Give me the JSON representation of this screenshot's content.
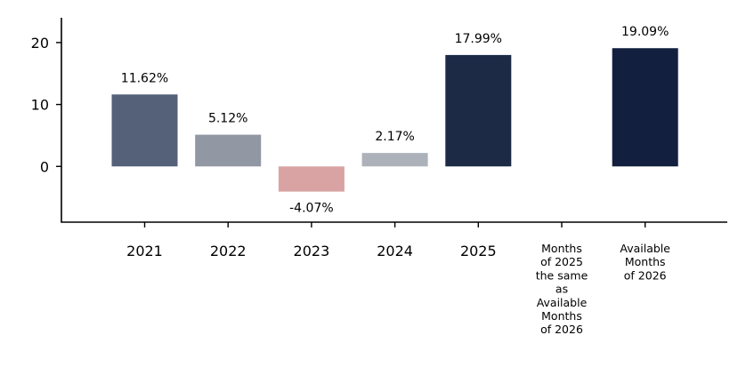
{
  "chart_data": {
    "type": "bar",
    "title": "",
    "xlabel": "",
    "ylabel": "",
    "ylim": [
      -9,
      24
    ],
    "yticks": [
      0,
      10,
      20
    ],
    "grid": false,
    "categories": [
      "2021",
      "2022",
      "2023",
      "2024",
      "2025",
      "Months\nof 2025\nthe same\nas\nAvailable\nMonths\nof 2026",
      "Available\nMonths\nof 2026"
    ],
    "values": [
      11.62,
      5.12,
      -4.07,
      2.17,
      17.99,
      null,
      19.09
    ],
    "data_labels": [
      "11.62%",
      "5.12%",
      "-4.07%",
      "2.17%",
      "17.99%",
      "",
      "19.09%"
    ],
    "colors": [
      "#556178",
      "#9197a3",
      "#d9a3a3",
      "#adb1b9",
      "#1c2a46",
      "#ffffff",
      "#131f3e"
    ]
  }
}
